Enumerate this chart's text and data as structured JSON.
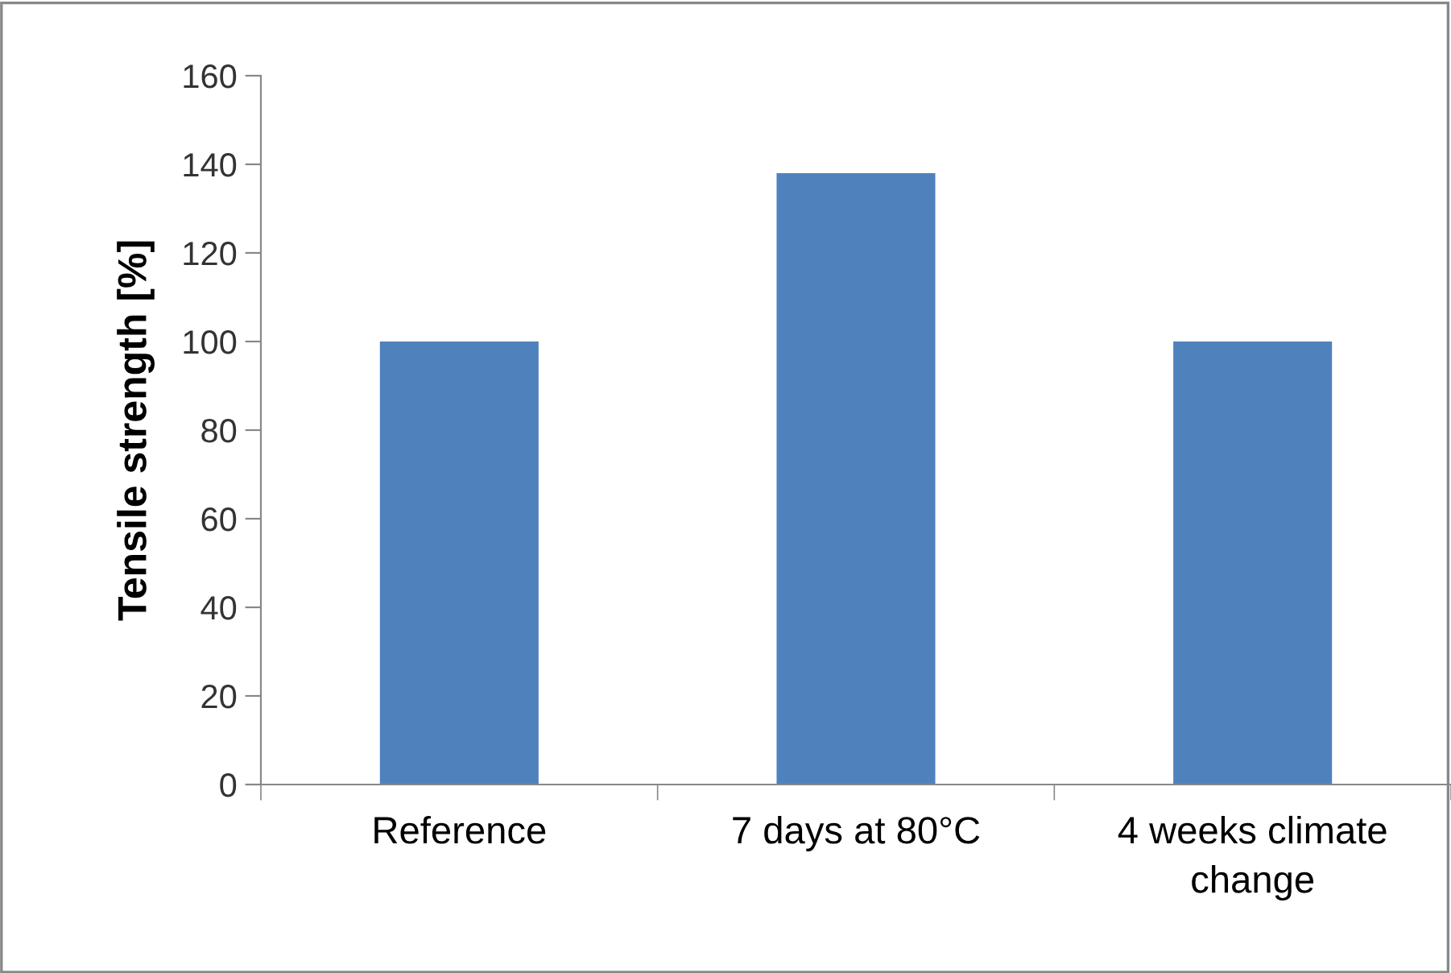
{
  "chart_data": {
    "type": "bar",
    "ylabel": "Tensile strength [%]",
    "categories": [
      "Reference",
      "7 days at 80°C",
      "4 weeks climate\nchange"
    ],
    "values": [
      100,
      138,
      100
    ],
    "color": "#4f81bd",
    "ylim": [
      0,
      160
    ],
    "yticks": [
      0,
      20,
      40,
      60,
      80,
      100,
      120,
      140,
      160
    ],
    "grid": false
  }
}
